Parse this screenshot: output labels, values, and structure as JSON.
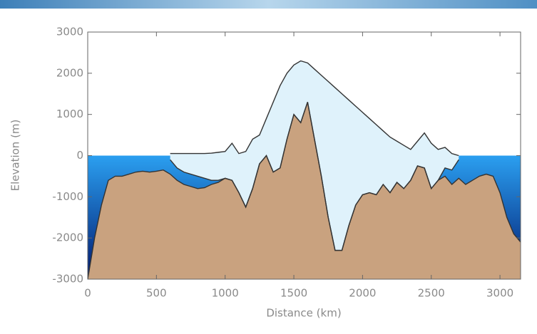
{
  "chart_data": {
    "type": "profile",
    "xlabel": "Distance (km)",
    "ylabel": "Elevation (m)",
    "xlim": [
      0,
      3150
    ],
    "xticks": [
      0,
      500,
      1000,
      1500,
      2000,
      2500,
      3000
    ],
    "ylim": [
      -3000,
      3000
    ],
    "yticks": [
      -3000,
      -2000,
      -1000,
      0,
      1000,
      2000,
      3000
    ],
    "ocean_color": [
      "#2b9ff0",
      "#00186e"
    ],
    "x": [
      0,
      50,
      100,
      150,
      200,
      250,
      300,
      350,
      400,
      450,
      500,
      550,
      600,
      650,
      700,
      750,
      800,
      850,
      900,
      950,
      1000,
      1050,
      1100,
      1150,
      1200,
      1250,
      1300,
      1350,
      1400,
      1450,
      1500,
      1550,
      1600,
      1650,
      1700,
      1750,
      1800,
      1850,
      1900,
      1950,
      2000,
      2050,
      2100,
      2150,
      2200,
      2250,
      2300,
      2350,
      2400,
      2450,
      2500,
      2550,
      2600,
      2650,
      2700,
      2750,
      2800,
      2850,
      2900,
      2950,
      3000,
      3050,
      3100,
      3150
    ],
    "series": [
      {
        "color": "#c9a27f",
        "values": [
          -3000,
          -2000,
          -1200,
          -600,
          -500,
          -500,
          -450,
          -400,
          -380,
          -400,
          -380,
          -350,
          -450,
          -600,
          -700,
          -750,
          -800,
          -780,
          -700,
          -650,
          -550,
          -600,
          -900,
          -1250,
          -800,
          -200,
          0,
          -400,
          -300,
          400,
          1000,
          800,
          1300,
          400,
          -500,
          -1500,
          -2300,
          -2300,
          -1700,
          -1200,
          -950,
          -900,
          -950,
          -700,
          -900,
          -650,
          -800,
          -600,
          -250,
          -300,
          -800,
          -600,
          -500,
          -700,
          -550,
          -700,
          -600,
          -500,
          -450,
          -500,
          -900,
          -1500,
          -1900,
          -2100
        ]
      },
      {
        "color": "#dff2fb",
        "values": [
          null,
          null,
          null,
          null,
          null,
          null,
          null,
          null,
          null,
          null,
          null,
          null,
          50,
          50,
          50,
          50,
          50,
          50,
          60,
          80,
          100,
          300,
          50,
          100,
          400,
          500,
          900,
          1300,
          1700,
          2000,
          2200,
          2300,
          2250,
          2100,
          1950,
          1800,
          1650,
          1500,
          1350,
          1200,
          1050,
          900,
          750,
          600,
          450,
          350,
          250,
          150,
          350,
          550,
          300,
          150,
          200,
          50,
          0,
          null,
          null,
          null,
          null,
          null,
          null,
          null,
          null,
          null
        ]
      },
      {
        "color": "#333333",
        "values": [
          null,
          null,
          null,
          null,
          null,
          null,
          null,
          null,
          null,
          null,
          null,
          null,
          -100,
          -300,
          -400,
          -450,
          -500,
          -550,
          -600,
          -600,
          -550,
          -600,
          -900,
          -1250,
          -800,
          -200,
          0,
          -400,
          -300,
          400,
          1000,
          800,
          1300,
          400,
          -500,
          -1500,
          -2300,
          -2300,
          -1700,
          -1200,
          -950,
          -900,
          -950,
          -700,
          -900,
          -650,
          -800,
          -600,
          -250,
          -300,
          -800,
          -600,
          -300,
          -350,
          -100,
          null,
          null,
          null,
          null,
          null,
          null,
          null,
          null,
          null
        ]
      }
    ]
  }
}
